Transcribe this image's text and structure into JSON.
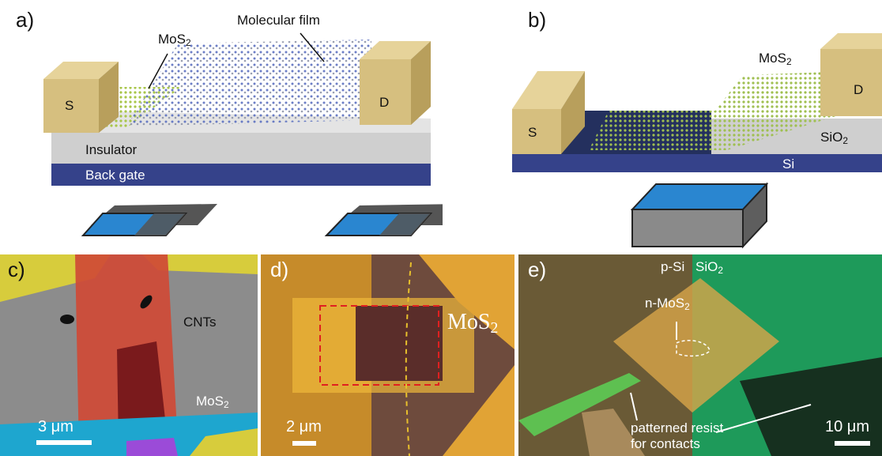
{
  "figure": {
    "panel_a": {
      "letter": "a)",
      "mos2_label": "MoS",
      "mos2_sub": "2",
      "film_label": "Molecular film",
      "source": "S",
      "drain": "D",
      "insulator": "Insulator",
      "gate": "Back gate"
    },
    "panel_b": {
      "letter": "b)",
      "mos2_label": "MoS",
      "mos2_sub": "2",
      "source": "S",
      "drain": "D",
      "oxide": "SiO",
      "oxide_sub": "2",
      "substrate": "Si"
    },
    "panel_c": {
      "letter": "c)",
      "cnt_label": "CNTs",
      "mos2_label": "MoS",
      "mos2_sub": "2",
      "scale": "3 μm"
    },
    "panel_d": {
      "letter": "d)",
      "mos2_label": "MoS",
      "mos2_sub": "2",
      "scale": "2 μm"
    },
    "panel_e": {
      "letter": "e)",
      "psi": "p-Si",
      "sio2": "SiO",
      "sio2_sub": "2",
      "nmos2": "n-MoS",
      "nmos2_sub": "2",
      "resist_line1": "patterned resist",
      "resist_line2": "for contacts",
      "scale": "10 μm"
    },
    "colors": {
      "gold": "#d6bf7f",
      "insulator": "#c9c9c9",
      "gate": "#2e3a7a",
      "mos2_cyan": "#2aa9d8",
      "cnt_red": "#d84a3a",
      "electrode_yellow": "#e6d43a",
      "green_sio2": "#1f9a58"
    }
  }
}
